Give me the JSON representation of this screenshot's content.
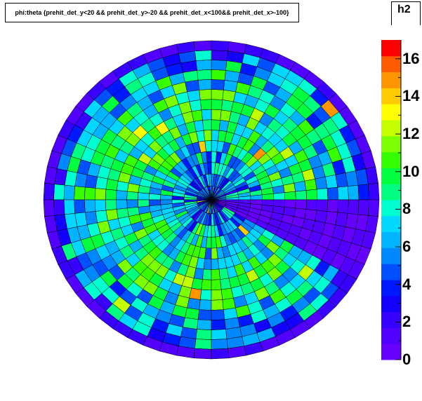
{
  "title": "phi:theta {prehit_det_y<20 && prehit_det_y>-20 && prehit_det_x<100&& prehit_det_x>-100}",
  "histogram_name": "h2",
  "chart_data": {
    "type": "heatmap",
    "projection": "polar (phi:theta)",
    "palette": [
      "#6600ff",
      "#5200ff",
      "#3800ff",
      "#1400ff",
      "#0018ff",
      "#0050ff",
      "#0088ff",
      "#00b4ff",
      "#00d8ff",
      "#00ffd0",
      "#00ff80",
      "#00ff3c",
      "#36ff00",
      "#7cff00",
      "#c4ff00",
      "#ffff00",
      "#ffcc00",
      "#ff9600",
      "#ff5c00",
      "#ff0000"
    ],
    "z_range": [
      0,
      17
    ],
    "z_ticks": [
      "0",
      "2",
      "4",
      "6",
      "8",
      "10",
      "12",
      "14",
      "16"
    ],
    "rings": 15,
    "sectors": 60,
    "frame_color": "#000000",
    "empty_wedge": "phi sector to the lower right of center (approx. 0 to -30 degrees) shows only low counts"
  }
}
